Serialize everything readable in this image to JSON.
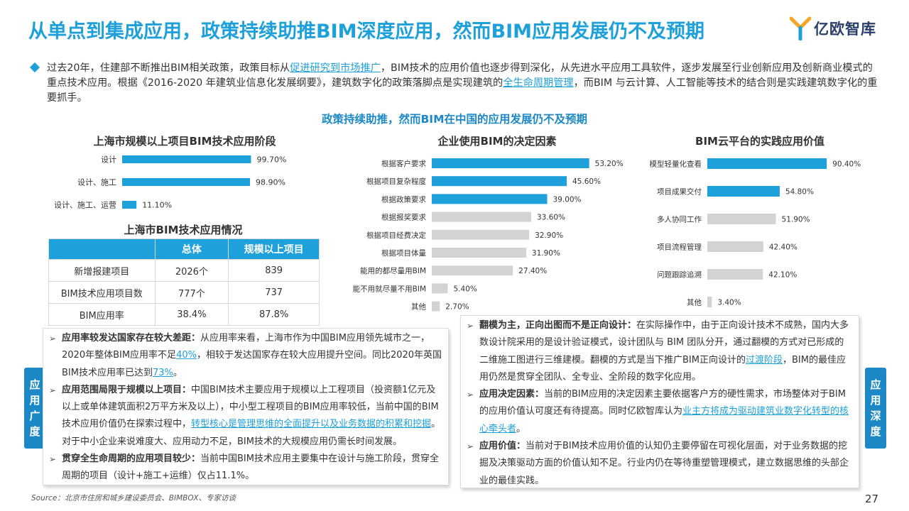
{
  "header": {
    "title": "从单点到集成应用，政策持续助推BIM深度应用，然而BIM应用发展仍不及预期",
    "logo_text": "亿欧智库"
  },
  "intro": {
    "p1": "过去20年，住建部不断推出BIM相关政策，政策目标从",
    "h1": "促进研究到市场推广",
    "p2": "，BIM技术的应用价值也逐步得到深化，从先进水平应用工具软件，逐步发展至行业创新应用及创新商业模式的重点技术应用。根据《2016-2020 年建筑业信息化发展纲要》，建筑数字化的政策落脚点是实现建筑的",
    "h2": "全生命周期管理",
    "p3": "，而BIM 与云计算、人工智能等技术的结合则是实践建筑数字化的重要抓手。"
  },
  "subtitle": "政策持续助推，然而BIM在中国的应用发展仍不及预期",
  "colors": {
    "accent": "#1ea0da",
    "gray": "#d3d3d3",
    "dark_blue": "#1c89c6"
  },
  "chart_data": [
    {
      "type": "bar",
      "orientation": "horizontal",
      "title": "上海市规模以上项目BIM技术应用阶段",
      "categories": [
        "设计",
        "设计、施工",
        "设计、施工、运营"
      ],
      "values": [
        99.7,
        98.9,
        11.1
      ],
      "labels": [
        "99.70%",
        "98.90%",
        "11.10%"
      ],
      "xlim": [
        0,
        100
      ]
    },
    {
      "type": "bar",
      "orientation": "horizontal",
      "title": "企业使用BIM的决定因素",
      "categories": [
        "根据客户要求",
        "根据项目复杂程度",
        "根据政策要求",
        "根据报奖要求",
        "根据项目经费决定",
        "根据项目体量",
        "能用的都尽量用BIM",
        "能不用就尽量不用BIM",
        "其他"
      ],
      "values": [
        53.2,
        45.6,
        39.0,
        33.6,
        32.9,
        31.9,
        27.4,
        5.4,
        2.7
      ],
      "labels": [
        "53.20%",
        "45.60%",
        "39.00%",
        "33.60%",
        "32.90%",
        "31.90%",
        "27.40%",
        "5.40%",
        "2.70%"
      ],
      "highlight_count": 3,
      "xlim": [
        0,
        60
      ]
    },
    {
      "type": "bar",
      "orientation": "horizontal",
      "title": "BIM云平台的实践应用价值",
      "categories": [
        "模型轻量化查看",
        "项目成果交付",
        "多人协同工作",
        "项目流程管理",
        "问题跟踪追溯",
        "其他"
      ],
      "values": [
        90.4,
        54.8,
        51.9,
        42.4,
        42.1,
        3.4
      ],
      "labels": [
        "90.40%",
        "54.80%",
        "51.90%",
        "42.40%",
        "42.10%",
        "3.40%"
      ],
      "highlight_count": 2,
      "xlim": [
        0,
        100
      ]
    }
  ],
  "table": {
    "title": "上海市BIM技术应用情况",
    "headers": [
      "",
      "总体",
      "规模以上项目"
    ],
    "rows": [
      [
        "新增报建项目",
        "2026个",
        "839"
      ],
      [
        "BIM技术应用项目数",
        "777个",
        "737"
      ],
      [
        "BIM应用率",
        "38.4%",
        "87.8%"
      ]
    ]
  },
  "left_panel": {
    "side_label": "应用广度",
    "i1_title": "应用率较发达国家存在较大差距：",
    "i1_a": "从应用率来看，上海市作为中国BIM应用领先城市之一，2020年整体BIM应用率不足",
    "i1_h1": "40%",
    "i1_b": "，相较于发达国家存在较大应用提升空间。同比2020年英国BIM技术应用率已达到",
    "i1_h2": "73%",
    "i1_c": "。",
    "i2_title": "应用范围局限于规模以上项目：",
    "i2_a": "中国BIM技术主要应用于规模以上工程项目（投资额1亿元及以上或单体建筑面积2万平方米及以上），中小型工程项目的BIM应用率较低，当前中国的BIM技术应用价值仍在探索过程中，",
    "i2_h": "转型核心是管理思维的全面提升以及业务数据的积累和挖掘",
    "i2_b": "。对于中小企业来说难度大、应用动力不足，BIM技术的大规模应用仍需长时间发展。",
    "i3_title": "贯穿全生命周期的应用项目较少：",
    "i3_a": "当前中国BIM技术应用主要集中在设计与施工阶段，贯穿全周期的项目（设计+施工+运维）仅占11.1%。"
  },
  "right_panel": {
    "side_label": "应用深度",
    "i1_title": "翻模为主，正向出图而不是正向设计：",
    "i1_a": "在实际操作中，由于正向设计技术不成熟，国内大多数设计院采用的是设计验证模式，设计团队与 BIM 团队分开，通过翻模的方式对已形成的二维施工图进行三维建模。翻模的方式是当下推广BIM正向设计的",
    "i1_h": "过渡阶段",
    "i1_b": "，BIM的最佳应用仍然是贯穿全团队、全专业、全阶段的数字化应用。",
    "i2_title": "应用决定因素：",
    "i2_a": "当前的BIM应用的决定因素主要依据客户方的硬性需求，市场整体对于BIM的应用价值认可度还有待提高。同时亿欧智库认为",
    "i2_h": "业主方将成为驱动建筑业数字化转型的核心牵头者",
    "i2_b": "。",
    "i3_title": "应用价值：",
    "i3_a": "当前对于BIM技术应用价值的认知仍主要停留在可视化层面，对于业务数据的挖掘及决策驱动方面的价值认知不足。行业内仍在等待重塑管理模式，建立数据思维的头部企业的最佳实践。"
  },
  "footer": {
    "source": "Source：北京市住房和城乡建设委员会、BIMBOX、专家访谈",
    "page": "27"
  }
}
